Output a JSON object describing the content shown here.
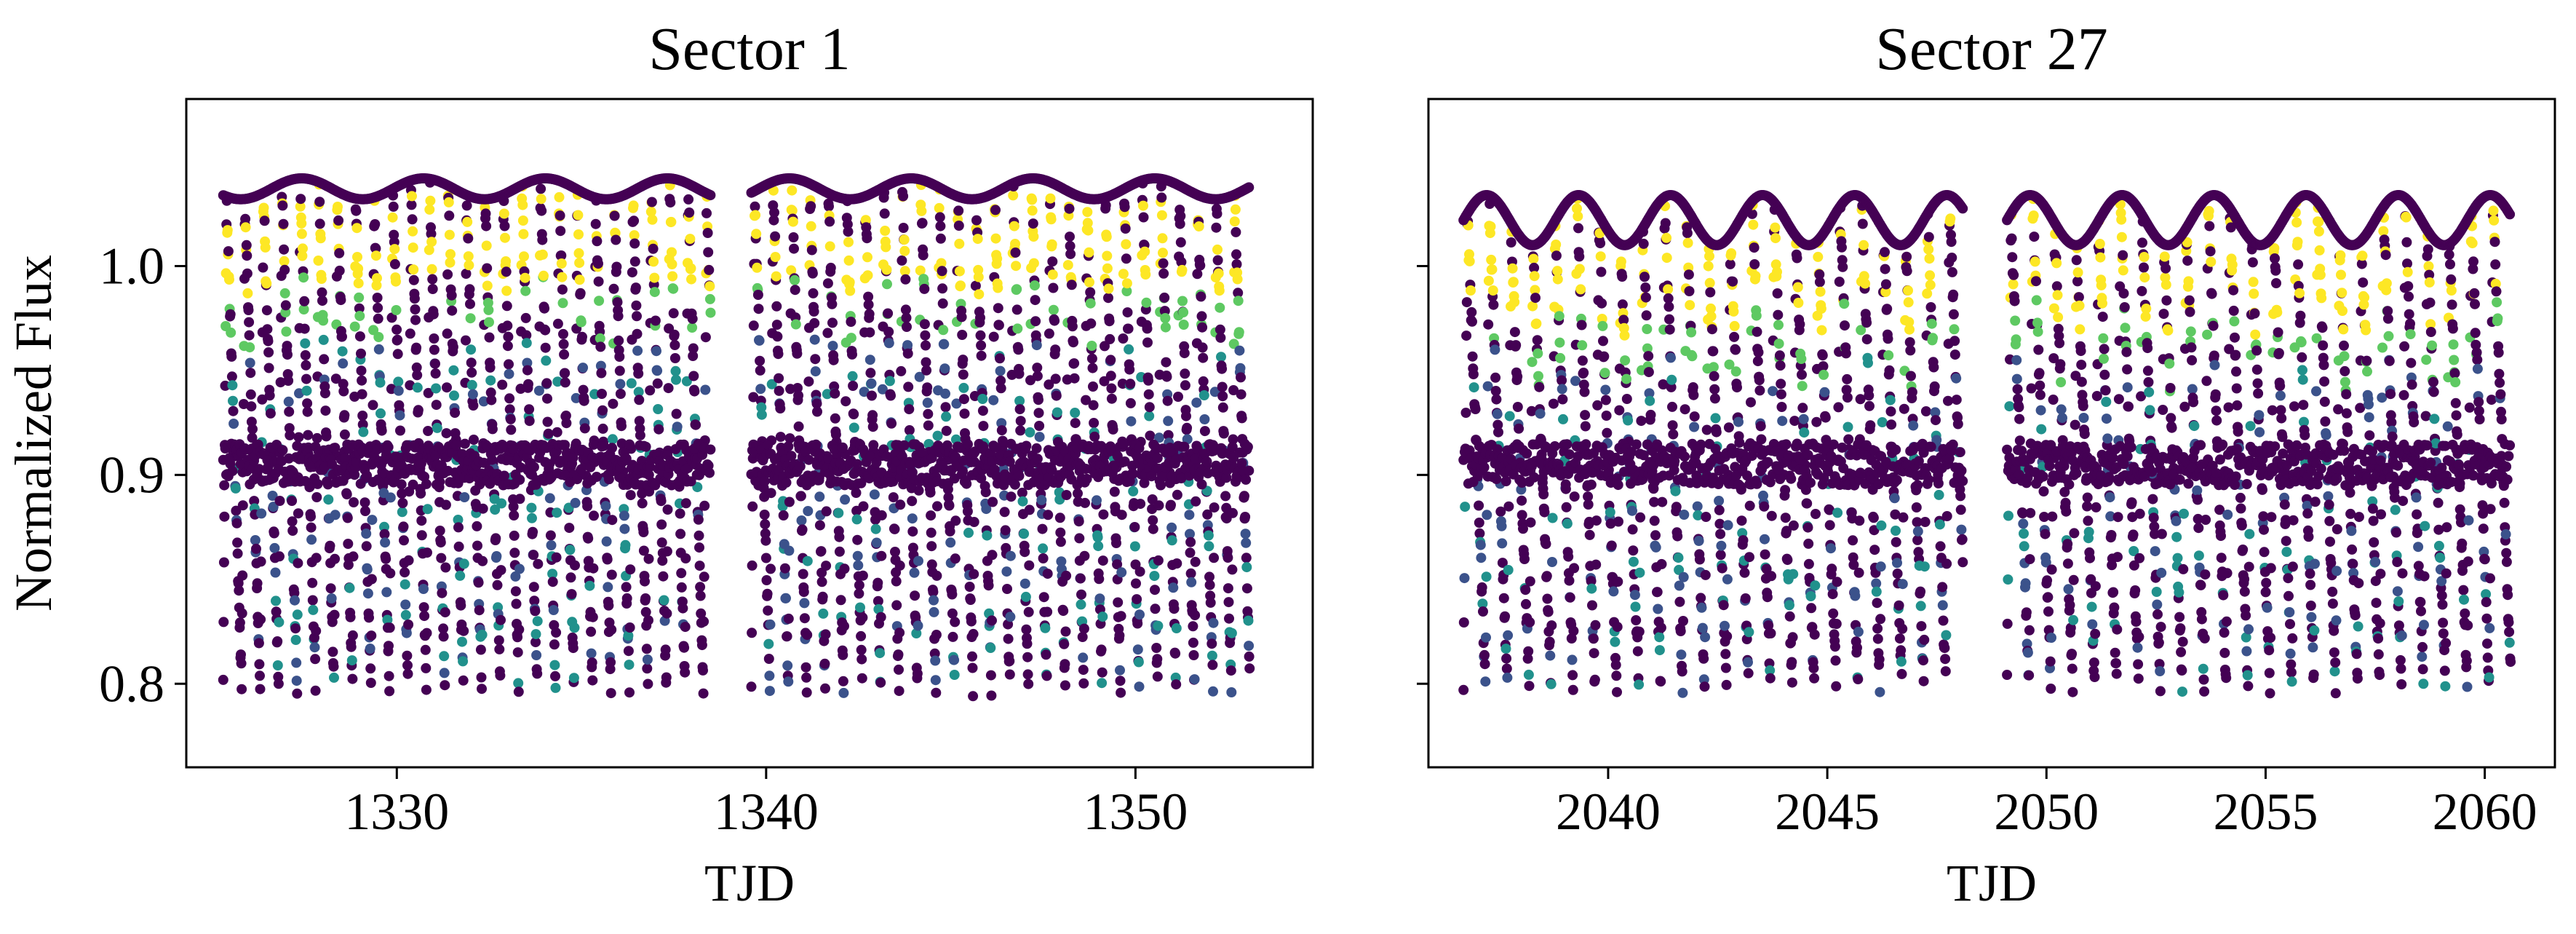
{
  "figure": {
    "ylabel": "Normalized Flux"
  },
  "chart_data": [
    {
      "type": "scatter",
      "title": "Sector 1",
      "xlabel": "TJD",
      "ylabel": "Normalized Flux",
      "xlim": [
        1324.3,
        1354.8
      ],
      "ylim": [
        0.76,
        1.08
      ],
      "xticks": [
        1330,
        1340,
        1350
      ],
      "yticks": [
        0.8,
        0.9,
        1.0
      ],
      "ytick_labels": [
        "0.8",
        "0.9",
        "1.0"
      ],
      "grid": false,
      "colormap": [
        "#440154",
        "#3b528b",
        "#21918c",
        "#5ec962",
        "#fde725"
      ],
      "pulse_period_days": 0.5,
      "segments": [
        [
          1325.3,
          1338.5
        ],
        [
          1339.6,
          1353.1
        ]
      ],
      "flux_envelope": {
        "upper": 1.035,
        "lower": 0.8
      },
      "extremes": {
        "max_flux": 1.068,
        "min_flux": 0.795
      }
    },
    {
      "type": "scatter",
      "title": "Sector 27",
      "xlabel": "TJD",
      "ylim": [
        0.76,
        1.08
      ],
      "xlim": [
        2035.9,
        2061.6
      ],
      "xticks": [
        2040,
        2045,
        2050,
        2055,
        2060
      ],
      "yticks": [
        0.8,
        0.9,
        1.0
      ],
      "grid": false,
      "colormap": [
        "#440154",
        "#3b528b",
        "#21918c",
        "#5ec962",
        "#fde725"
      ],
      "pulse_period_days": 0.5,
      "segments": [
        [
          2036.7,
          2048.1
        ],
        [
          2049.1,
          2060.6
        ]
      ],
      "flux_envelope": {
        "upper": 1.02,
        "lower": 0.8
      },
      "extremes": {
        "max_flux": 1.034,
        "min_flux": 0.775
      }
    }
  ]
}
